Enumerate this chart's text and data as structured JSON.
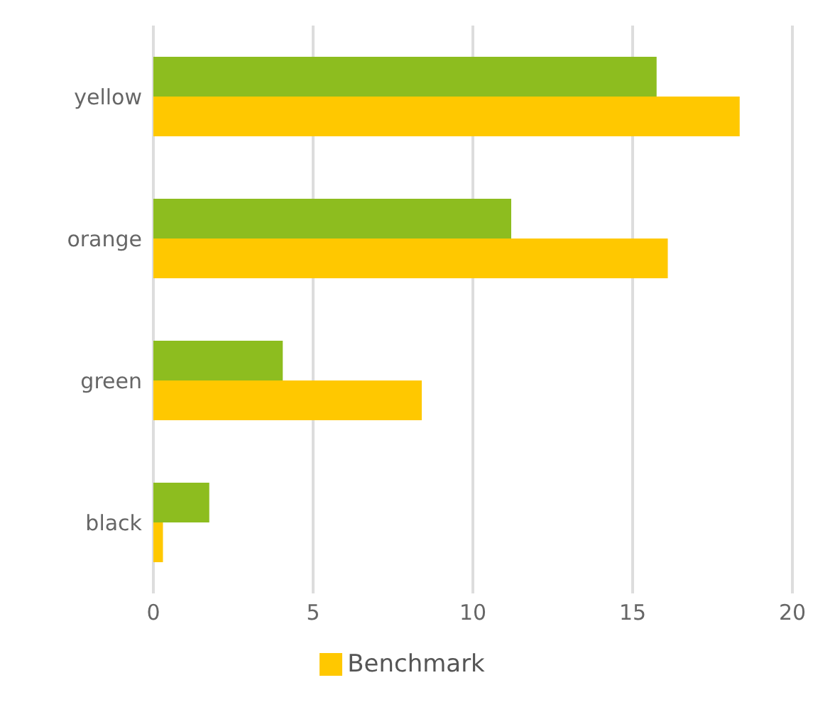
{
  "chart_data": {
    "type": "bar",
    "orientation": "horizontal",
    "categories": [
      "yellow",
      "orange",
      "green",
      "black"
    ],
    "series": [
      {
        "color": "#8dbd1f",
        "values": [
          15.75,
          11.2,
          4.05,
          1.75
        ]
      },
      {
        "name": "Benchmark",
        "color": "#ffc800",
        "values": [
          18.35,
          16.1,
          8.4,
          0.3
        ]
      }
    ],
    "xlim": [
      0,
      20
    ],
    "xticks": [
      0,
      5,
      10,
      15,
      20
    ],
    "grid": "x",
    "legend": "bottom"
  }
}
